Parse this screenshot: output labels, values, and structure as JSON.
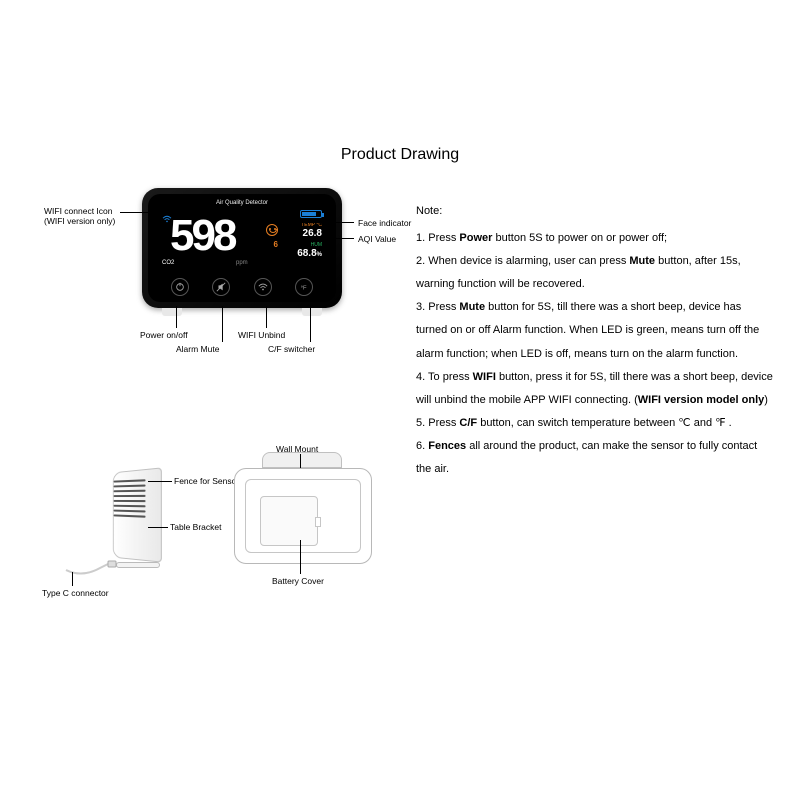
{
  "title": "Product Drawing",
  "device": {
    "screen_title": "Air Quality Detector",
    "co2_value": "598",
    "co2_label": "CO2",
    "ppm_label": "ppm",
    "aqi_value": "6",
    "temp_label": "TEMP °C",
    "temp_value": "26.8",
    "hum_label": "HUM",
    "hum_value": "68.8",
    "hum_unit": "%"
  },
  "callouts": {
    "wifi": "WIFI connect Icon",
    "wifi_sub": "(WIFI version only)",
    "face": "Face indicator",
    "aqi": "AQI Value",
    "power": "Power on/off",
    "mute": "Alarm Mute",
    "unbind": "WIFI Unbind",
    "cf": "C/F switcher",
    "wall": "Wall Mount",
    "fence": "Fence for Sensor",
    "bracket": "Table Bracket",
    "typec": "Type C connector",
    "battcover": "Battery Cover"
  },
  "notes": {
    "header": "Note:",
    "items": [
      "1.  Press <b>Power</b> button 5S to power on or power off;",
      "2.  When device is alarming, user can press <b>Mute</b> button, after 15s, warning function will be recovered.",
      "3.  Press <b>Mute</b> button for 5S, till there was a short beep, device has turned on or off Alarm function. When LED is green, means turn off the alarm function; when LED is off, means turn on the alarm function.",
      "4.  To press <b>WIFI</b> button, press it for 5S, till there was a short beep, device will unbind the mobile APP WIFI connecting. (<b>WIFI version model only</b>)",
      "5.  Press <b>C/F</b> button, can switch temperature between  ℃  and  ℉ .",
      "6.  <b>Fences</b> all around the product, can make the sensor to fully contact the air."
    ]
  },
  "colors": {
    "wifi": "#1b7fd6",
    "temp": "#e67e22",
    "hum": "#27ae60"
  }
}
